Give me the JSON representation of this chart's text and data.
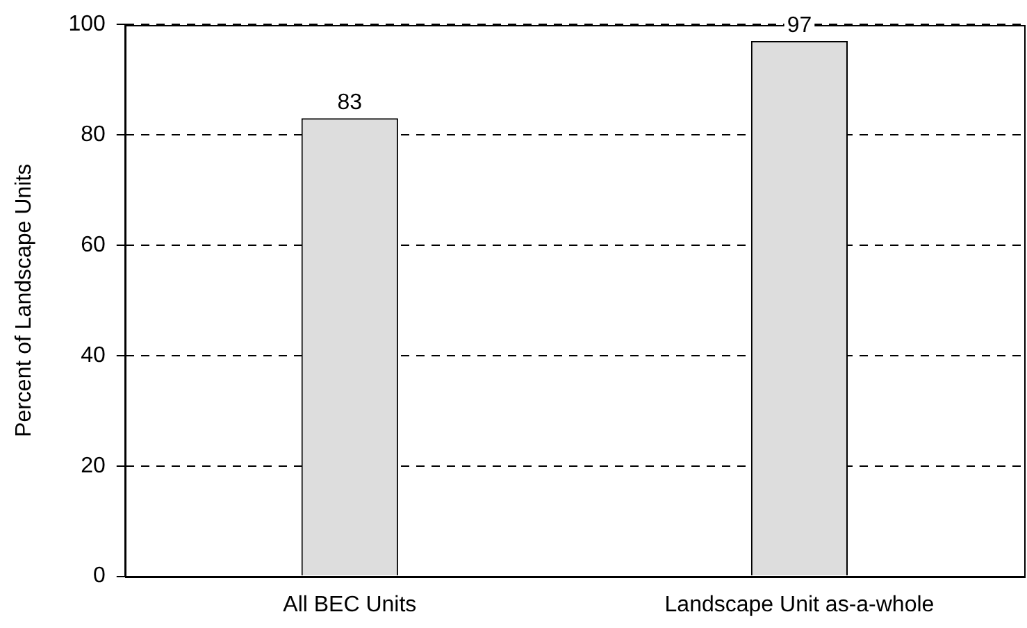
{
  "chart_data": {
    "type": "bar",
    "ylabel": "Percent of Landscape Units",
    "categories": [
      "All BEC Units",
      "Landscape Unit as-a-whole"
    ],
    "values": [
      83,
      97
    ],
    "color": "#dddddd",
    "ylim": [
      0,
      100
    ],
    "yticks": [
      0,
      20,
      40,
      60,
      80,
      100
    ],
    "grid": "y",
    "data_labels": true
  }
}
